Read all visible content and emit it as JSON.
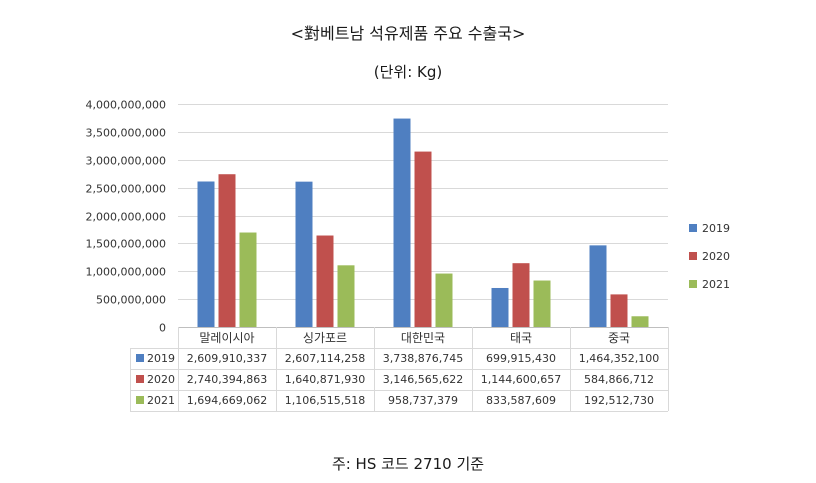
{
  "title": "<對베트남 석유제품 주요 수출국>",
  "unit": "(단위: Kg)",
  "footnote": "주: HS 코드 2710 기준",
  "colors": {
    "2019": "#4f7fc1",
    "2020": "#c0504d",
    "2021": "#9bbb59"
  },
  "chart_data": {
    "type": "bar",
    "title": "<對베트남 석유제품 주요 수출국>",
    "ylabel": "(단위: Kg)",
    "xlabel": "",
    "ylim": [
      0,
      4000000000
    ],
    "grid": true,
    "legend_position": "right",
    "y_ticks": [
      0,
      500000000,
      1000000000,
      1500000000,
      2000000000,
      2500000000,
      3000000000,
      3500000000,
      4000000000
    ],
    "y_tick_labels": [
      "0",
      "500,000,000",
      "1,000,000,000",
      "1,500,000,000",
      "2,000,000,000",
      "2,500,000,000",
      "3,000,000,000",
      "3,500,000,000",
      "4,000,000,000"
    ],
    "categories": [
      "말레이시아",
      "싱가포르",
      "대한민국",
      "태국",
      "중국"
    ],
    "series": [
      {
        "name": "2019",
        "values": [
          2609910337,
          2607114258,
          3738876745,
          699915430,
          1464352100
        ],
        "labels": [
          "2,609,910,337",
          "2,607,114,258",
          "3,738,876,745",
          "699,915,430",
          "1,464,352,100"
        ]
      },
      {
        "name": "2020",
        "values": [
          2740394863,
          1640871930,
          3146565622,
          1144600657,
          584866712
        ],
        "labels": [
          "2,740,394,863",
          "1,640,871,930",
          "3,146,565,622",
          "1,144,600,657",
          "584,866,712"
        ]
      },
      {
        "name": "2021",
        "values": [
          1694669062,
          1106515518,
          958737379,
          833587609,
          192512730
        ],
        "labels": [
          "1,694,669,062",
          "1,106,515,518",
          "958,737,379",
          "833,587,609",
          "192,512,730"
        ]
      }
    ]
  }
}
